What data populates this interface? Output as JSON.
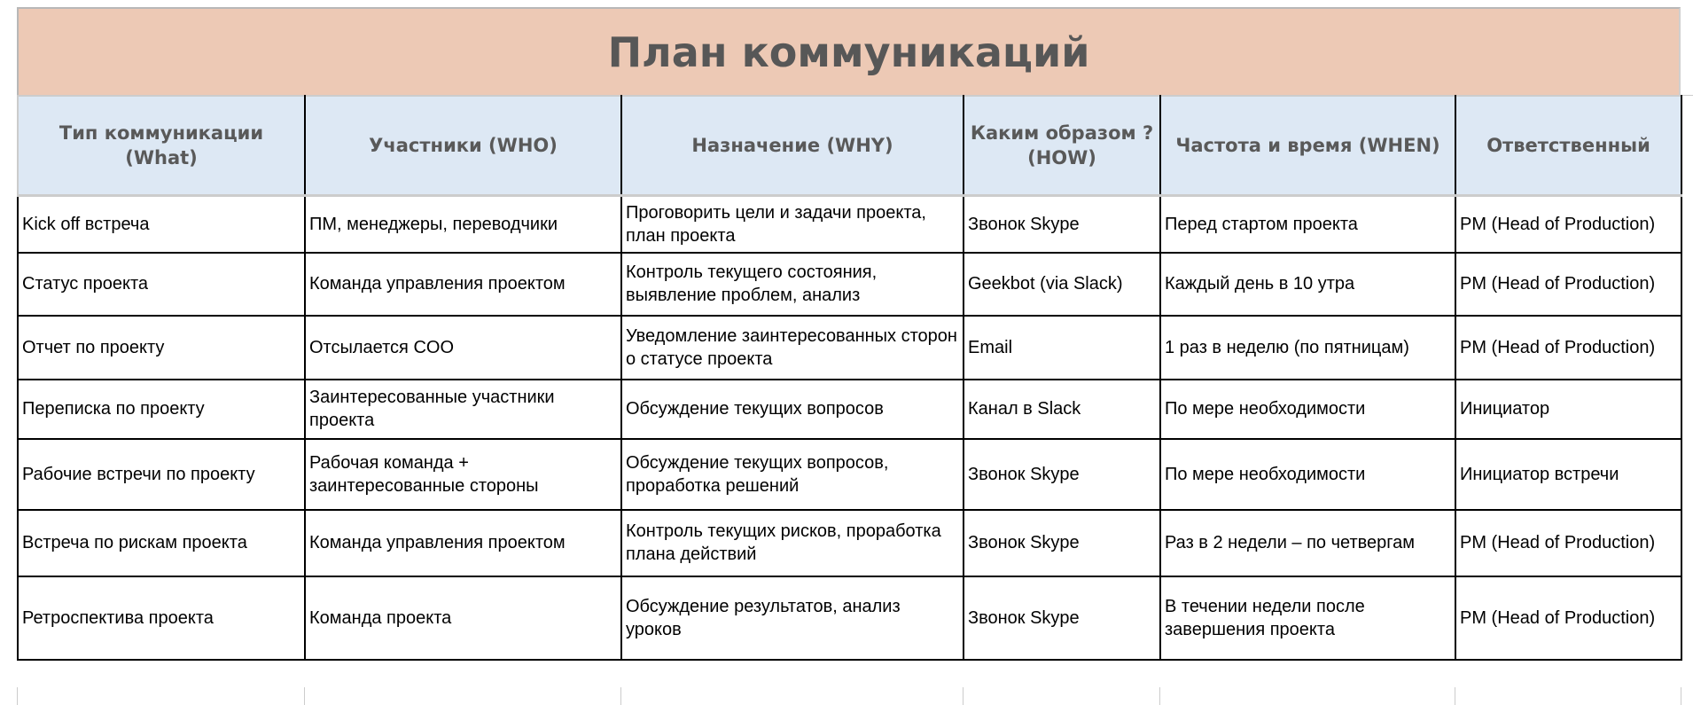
{
  "title": "План коммуникаций",
  "colors": {
    "title_band": "#EDC9B5",
    "header": "#DDE8F4",
    "header_text": "#595959"
  },
  "columns": [
    "Тип коммуникации (What)",
    "Участники (WHO)",
    "Назначение (WHY)",
    "Каким образом ? (HOW)",
    "Частота  и время (WHEN)",
    "Ответственный"
  ],
  "rows": [
    [
      "Kick off встреча",
      "ПМ, менеджеры, переводчики",
      "Проговорить цели и задачи проекта, план проекта",
      "Звонок Skype",
      "Перед стартом проекта",
      "PM (Head of Production)"
    ],
    [
      "Статус проекта",
      "Команда управления проектом",
      "Контроль текущего состояния, выявление проблем, анализ",
      "Geekbot (via Slack)",
      "Каждый день в 10 утра",
      "PM (Head of Production)"
    ],
    [
      "Отчет по проекту",
      "Отсылается COO",
      "Уведомление заинтересованных сторон о статусе проекта",
      "Email",
      "1 раз в неделю (по пятницам)",
      "PM (Head of Production)"
    ],
    [
      "Переписка по проекту",
      "Заинтересованные участники проекта",
      "Обсуждение текущих вопросов",
      "Канал в Slack",
      "По мере необходимости",
      "Инициатор"
    ],
    [
      "Рабочие встречи по проекту",
      "Рабочая команда + заинтересованные стороны",
      "Обсуждение текущих вопросов, проработка решений",
      "Звонок Skype",
      "По мере необходимости",
      "Инициатор встречи"
    ],
    [
      "Встреча по рискам проекта",
      "Команда управления проектом",
      "Контроль текущих рисков, проработка плана действий",
      "Звонок Skype",
      "Раз в 2 недели – по четвергам",
      "PM (Head of Production)"
    ],
    [
      "Ретроспектива проекта",
      "Команда проекта",
      "Обсуждение результатов, анализ уроков",
      "Звонок Skype",
      "В течении недели после завершения проекта",
      "PM (Head of Production)"
    ]
  ]
}
